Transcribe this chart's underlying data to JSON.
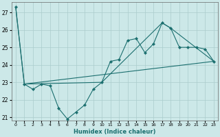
{
  "xlabel": "Humidex (Indice chaleur)",
  "background_color": "#cce8e8",
  "grid_color": "#aacccc",
  "line_color": "#1a6e6e",
  "xlim": [
    -0.5,
    23.5
  ],
  "ylim": [
    20.8,
    27.6
  ],
  "yticks": [
    21,
    22,
    23,
    24,
    25,
    26,
    27
  ],
  "xticks": [
    0,
    1,
    2,
    3,
    4,
    5,
    6,
    7,
    8,
    9,
    10,
    11,
    12,
    13,
    14,
    15,
    16,
    17,
    18,
    19,
    20,
    21,
    22,
    23
  ],
  "series1_x": [
    0,
    1,
    2,
    3,
    4,
    5,
    6,
    7,
    8,
    9,
    10,
    11,
    12,
    13,
    14,
    15,
    16,
    17,
    18,
    19,
    20,
    21,
    22,
    23
  ],
  "series1_y": [
    27.3,
    22.9,
    22.6,
    22.9,
    22.8,
    21.5,
    20.9,
    21.3,
    21.7,
    22.6,
    23.0,
    24.2,
    24.3,
    25.4,
    25.5,
    24.7,
    25.2,
    26.4,
    26.1,
    25.0,
    25.0,
    25.0,
    24.9,
    24.2
  ],
  "series2_x": [
    0,
    1,
    10,
    17,
    18,
    23
  ],
  "series2_y": [
    27.3,
    22.9,
    23.0,
    26.4,
    26.1,
    24.2
  ],
  "series3_x": [
    1,
    23
  ],
  "series3_y": [
    22.9,
    24.2
  ]
}
